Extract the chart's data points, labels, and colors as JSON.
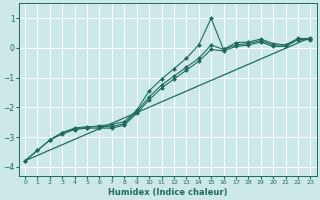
{
  "xlabel": "Humidex (Indice chaleur)",
  "ylabel": "",
  "background_color": "#cde8e8",
  "grid_color": "#ffffff",
  "line_color": "#1e6b5e",
  "xlim": [
    -0.5,
    23.5
  ],
  "ylim": [
    -4.3,
    1.5
  ],
  "xticks": [
    0,
    1,
    2,
    3,
    4,
    5,
    6,
    7,
    8,
    9,
    10,
    11,
    12,
    13,
    14,
    15,
    16,
    17,
    18,
    19,
    20,
    21,
    22,
    23
  ],
  "yticks": [
    -4,
    -3,
    -2,
    -1,
    0,
    1
  ],
  "lines": [
    {
      "x": [
        0,
        1,
        2,
        3,
        4,
        5,
        6,
        7,
        8,
        9,
        10,
        11,
        12,
        13,
        14,
        15,
        16,
        17,
        18,
        19,
        20,
        21,
        22,
        23
      ],
      "y": [
        -3.8,
        -3.45,
        -3.1,
        -2.85,
        -2.7,
        -2.65,
        -2.65,
        -2.65,
        -2.55,
        -2.15,
        -1.65,
        -1.25,
        -0.95,
        -0.65,
        -0.35,
        0.1,
        -0.05,
        0.1,
        0.15,
        0.25,
        0.1,
        0.1,
        0.3,
        0.3
      ],
      "marker": "D",
      "markersize": 2.0,
      "linewidth": 0.8
    },
    {
      "x": [
        0,
        1,
        2,
        3,
        4,
        5,
        6,
        7,
        8,
        9,
        10,
        11,
        12,
        13,
        14,
        15,
        16,
        17,
        18,
        19,
        20,
        21,
        22,
        23
      ],
      "y": [
        -3.8,
        -3.45,
        -3.1,
        -2.9,
        -2.75,
        -2.7,
        -2.7,
        -2.7,
        -2.6,
        -2.2,
        -1.75,
        -1.35,
        -1.05,
        -0.75,
        -0.45,
        -0.05,
        -0.1,
        0.05,
        0.1,
        0.2,
        0.05,
        0.05,
        0.28,
        0.28
      ],
      "marker": "D",
      "markersize": 2.0,
      "linewidth": 0.8
    },
    {
      "x": [
        0,
        23
      ],
      "y": [
        -3.8,
        0.35
      ],
      "marker": null,
      "markersize": 0,
      "linewidth": 0.9
    },
    {
      "x": [
        2,
        3,
        4,
        5,
        6,
        7,
        8,
        9,
        10,
        11,
        12,
        13,
        14,
        15,
        16,
        17,
        18,
        19,
        20,
        21,
        22,
        23
      ],
      "y": [
        -3.1,
        -2.85,
        -2.72,
        -2.68,
        -2.62,
        -2.58,
        -2.48,
        -2.1,
        -1.45,
        -1.05,
        -0.7,
        -0.35,
        0.1,
        1.0,
        -0.05,
        0.18,
        0.2,
        0.3,
        0.15,
        0.1,
        0.32,
        0.32
      ],
      "marker": "D",
      "markersize": 2.0,
      "linewidth": 0.8
    }
  ]
}
